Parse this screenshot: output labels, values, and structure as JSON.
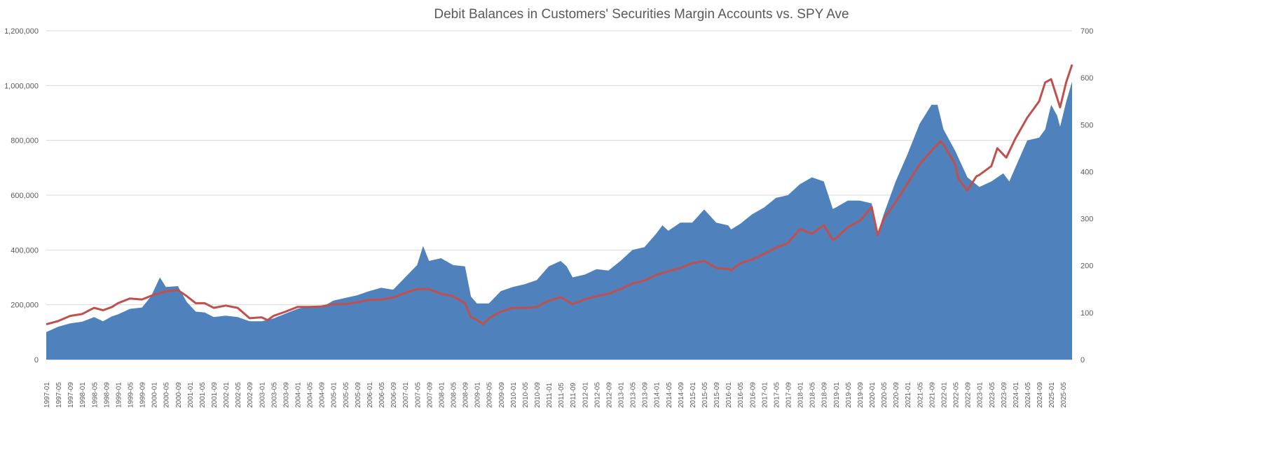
{
  "chart_data": {
    "type": "area",
    "title": "Debit Balances in Customers' Securities Margin Accounts vs. SPY Ave",
    "xlabel": "",
    "ylabel": "",
    "y_left": {
      "ylim": [
        0,
        1200000
      ],
      "ticks": [
        "0",
        "200,000",
        "400,000",
        "600,000",
        "800,000",
        "1,000,000",
        "1,200,000"
      ]
    },
    "y_right": {
      "ylim": [
        0,
        700
      ],
      "ticks": [
        "0",
        "100",
        "200",
        "300",
        "400",
        "500",
        "600",
        "700"
      ]
    },
    "x_tick_labels": [
      "1997-01",
      "1997-05",
      "1997-09",
      "1998-01",
      "1998-05",
      "1998-09",
      "1999-01",
      "1999-05",
      "1999-09",
      "2000-01",
      "2000-05",
      "2000-09",
      "2001-01",
      "2001-05",
      "2001-09",
      "2002-01",
      "2002-05",
      "2002-09",
      "2003-01",
      "2003-05",
      "2003-09",
      "2004-01",
      "2004-05",
      "2004-09",
      "2005-01",
      "2005-05",
      "2005-09",
      "2006-01",
      "2006-05",
      "2006-09",
      "2007-01",
      "2007-05",
      "2007-09",
      "2008-01",
      "2008-05",
      "2008-09",
      "2009-01",
      "2009-05",
      "2009-09",
      "2010-01",
      "2010-05",
      "2010-09",
      "2011-01",
      "2011-05",
      "2011-09",
      "2012-01",
      "2012-05",
      "2012-09",
      "2013-01",
      "2013-05",
      "2013-09",
      "2014-01",
      "2014-05",
      "2014-09",
      "2015-01",
      "2015-05",
      "2015-09",
      "2016-01",
      "2016-05",
      "2016-09",
      "2017-01",
      "2017-05",
      "2017-09",
      "2018-01",
      "2018-05",
      "2018-09",
      "2019-01",
      "2019-05",
      "2019-09",
      "2020-01",
      "2020-05",
      "2020-09",
      "2021-01",
      "2021-05",
      "2021-09",
      "2022-01",
      "2022-05",
      "2022-09",
      "2023-01",
      "2023-05",
      "2023-09",
      "2024-01",
      "2024-05",
      "2024-09",
      "2025-01",
      "2025-05"
    ],
    "x_range": [
      "1997-01",
      "2025-08"
    ],
    "legend": "none",
    "grid": true,
    "series": [
      {
        "axis": "left",
        "kind": "area",
        "color": "#4f81bd",
        "points": [
          [
            "1997-01",
            100000
          ],
          [
            "1997-05",
            120000
          ],
          [
            "1997-09",
            132000
          ],
          [
            "1998-01",
            138000
          ],
          [
            "1998-05",
            155000
          ],
          [
            "1998-08",
            140000
          ],
          [
            "1998-11",
            158000
          ],
          [
            "1999-01",
            165000
          ],
          [
            "1999-05",
            185000
          ],
          [
            "1999-09",
            190000
          ],
          [
            "1999-12",
            230000
          ],
          [
            "2000-03",
            300000
          ],
          [
            "2000-05",
            265000
          ],
          [
            "2000-09",
            268000
          ],
          [
            "2000-12",
            210000
          ],
          [
            "2001-03",
            175000
          ],
          [
            "2001-06",
            172000
          ],
          [
            "2001-09",
            155000
          ],
          [
            "2002-01",
            160000
          ],
          [
            "2002-05",
            155000
          ],
          [
            "2002-09",
            140000
          ],
          [
            "2003-01",
            140000
          ],
          [
            "2003-05",
            150000
          ],
          [
            "2003-09",
            168000
          ],
          [
            "2004-01",
            185000
          ],
          [
            "2004-05",
            195000
          ],
          [
            "2004-09",
            190000
          ],
          [
            "2005-01",
            215000
          ],
          [
            "2005-05",
            225000
          ],
          [
            "2005-09",
            235000
          ],
          [
            "2006-01",
            250000
          ],
          [
            "2006-05",
            262000
          ],
          [
            "2006-09",
            255000
          ],
          [
            "2007-01",
            300000
          ],
          [
            "2007-05",
            345000
          ],
          [
            "2007-07",
            415000
          ],
          [
            "2007-09",
            360000
          ],
          [
            "2008-01",
            370000
          ],
          [
            "2008-05",
            345000
          ],
          [
            "2008-09",
            340000
          ],
          [
            "2008-11",
            230000
          ],
          [
            "2009-01",
            205000
          ],
          [
            "2009-05",
            205000
          ],
          [
            "2009-09",
            250000
          ],
          [
            "2010-01",
            265000
          ],
          [
            "2010-05",
            275000
          ],
          [
            "2010-09",
            290000
          ],
          [
            "2011-01",
            340000
          ],
          [
            "2011-05",
            360000
          ],
          [
            "2011-07",
            340000
          ],
          [
            "2011-09",
            300000
          ],
          [
            "2012-01",
            310000
          ],
          [
            "2012-05",
            330000
          ],
          [
            "2012-09",
            325000
          ],
          [
            "2013-01",
            360000
          ],
          [
            "2013-05",
            400000
          ],
          [
            "2013-09",
            410000
          ],
          [
            "2014-01",
            460000
          ],
          [
            "2014-03",
            490000
          ],
          [
            "2014-05",
            470000
          ],
          [
            "2014-09",
            500000
          ],
          [
            "2015-01",
            500000
          ],
          [
            "2015-05",
            548000
          ],
          [
            "2015-09",
            500000
          ],
          [
            "2016-01",
            490000
          ],
          [
            "2016-02",
            475000
          ],
          [
            "2016-05",
            495000
          ],
          [
            "2016-09",
            530000
          ],
          [
            "2017-01",
            555000
          ],
          [
            "2017-05",
            590000
          ],
          [
            "2017-09",
            600000
          ],
          [
            "2018-01",
            640000
          ],
          [
            "2018-05",
            665000
          ],
          [
            "2018-09",
            650000
          ],
          [
            "2018-12",
            550000
          ],
          [
            "2019-01",
            555000
          ],
          [
            "2019-05",
            580000
          ],
          [
            "2019-09",
            580000
          ],
          [
            "2020-01",
            570000
          ],
          [
            "2020-03",
            460000
          ],
          [
            "2020-05",
            530000
          ],
          [
            "2020-09",
            650000
          ],
          [
            "2021-01",
            750000
          ],
          [
            "2021-05",
            860000
          ],
          [
            "2021-09",
            930000
          ],
          [
            "2021-11",
            930000
          ],
          [
            "2022-01",
            840000
          ],
          [
            "2022-05",
            760000
          ],
          [
            "2022-09",
            665000
          ],
          [
            "2023-01",
            630000
          ],
          [
            "2023-05",
            650000
          ],
          [
            "2023-09",
            680000
          ],
          [
            "2023-11",
            650000
          ],
          [
            "2024-01",
            700000
          ],
          [
            "2024-05",
            800000
          ],
          [
            "2024-09",
            810000
          ],
          [
            "2024-11",
            840000
          ],
          [
            "2025-01",
            930000
          ],
          [
            "2025-03",
            890000
          ],
          [
            "2025-04",
            850000
          ],
          [
            "2025-06",
            940000
          ],
          [
            "2025-08",
            1015000
          ]
        ]
      },
      {
        "axis": "right",
        "kind": "line",
        "color": "#c0504d",
        "points": [
          [
            "1997-01",
            75
          ],
          [
            "1997-05",
            82
          ],
          [
            "1997-09",
            93
          ],
          [
            "1998-01",
            97
          ],
          [
            "1998-05",
            110
          ],
          [
            "1998-08",
            105
          ],
          [
            "1998-11",
            112
          ],
          [
            "1999-01",
            120
          ],
          [
            "1999-05",
            130
          ],
          [
            "1999-09",
            128
          ],
          [
            "2000-01",
            138
          ],
          [
            "2000-05",
            145
          ],
          [
            "2000-09",
            148
          ],
          [
            "2000-12",
            135
          ],
          [
            "2001-03",
            120
          ],
          [
            "2001-06",
            120
          ],
          [
            "2001-09",
            110
          ],
          [
            "2002-01",
            115
          ],
          [
            "2002-05",
            110
          ],
          [
            "2002-09",
            88
          ],
          [
            "2003-01",
            90
          ],
          [
            "2003-03",
            84
          ],
          [
            "2003-05",
            93
          ],
          [
            "2003-09",
            102
          ],
          [
            "2004-01",
            112
          ],
          [
            "2004-05",
            112
          ],
          [
            "2004-09",
            113
          ],
          [
            "2005-01",
            118
          ],
          [
            "2005-05",
            118
          ],
          [
            "2005-09",
            122
          ],
          [
            "2006-01",
            127
          ],
          [
            "2006-05",
            128
          ],
          [
            "2006-09",
            132
          ],
          [
            "2007-01",
            142
          ],
          [
            "2007-05",
            150
          ],
          [
            "2007-09",
            150
          ],
          [
            "2008-01",
            140
          ],
          [
            "2008-05",
            135
          ],
          [
            "2008-09",
            120
          ],
          [
            "2008-11",
            90
          ],
          [
            "2009-01",
            85
          ],
          [
            "2009-03",
            75
          ],
          [
            "2009-05",
            88
          ],
          [
            "2009-09",
            102
          ],
          [
            "2010-01",
            110
          ],
          [
            "2010-05",
            110
          ],
          [
            "2010-09",
            112
          ],
          [
            "2011-01",
            125
          ],
          [
            "2011-05",
            133
          ],
          [
            "2011-09",
            118
          ],
          [
            "2012-01",
            128
          ],
          [
            "2012-05",
            135
          ],
          [
            "2012-09",
            140
          ],
          [
            "2013-01",
            150
          ],
          [
            "2013-05",
            162
          ],
          [
            "2013-09",
            168
          ],
          [
            "2014-01",
            180
          ],
          [
            "2014-05",
            188
          ],
          [
            "2014-09",
            195
          ],
          [
            "2015-01",
            205
          ],
          [
            "2015-05",
            210
          ],
          [
            "2015-09",
            195
          ],
          [
            "2016-01",
            193
          ],
          [
            "2016-02",
            190
          ],
          [
            "2016-05",
            205
          ],
          [
            "2016-09",
            213
          ],
          [
            "2017-01",
            225
          ],
          [
            "2017-05",
            238
          ],
          [
            "2017-09",
            248
          ],
          [
            "2018-01",
            278
          ],
          [
            "2018-05",
            268
          ],
          [
            "2018-09",
            286
          ],
          [
            "2018-12",
            255
          ],
          [
            "2019-01",
            258
          ],
          [
            "2019-05",
            282
          ],
          [
            "2019-09",
            295
          ],
          [
            "2020-01",
            325
          ],
          [
            "2020-03",
            265
          ],
          [
            "2020-05",
            300
          ],
          [
            "2020-09",
            335
          ],
          [
            "2021-01",
            375
          ],
          [
            "2021-05",
            415
          ],
          [
            "2021-09",
            445
          ],
          [
            "2021-12",
            465
          ],
          [
            "2022-01",
            458
          ],
          [
            "2022-05",
            415
          ],
          [
            "2022-06",
            385
          ],
          [
            "2022-09",
            360
          ],
          [
            "2022-12",
            390
          ],
          [
            "2023-01",
            393
          ],
          [
            "2023-05",
            412
          ],
          [
            "2023-07",
            450
          ],
          [
            "2023-10",
            430
          ],
          [
            "2024-01",
            470
          ],
          [
            "2024-05",
            515
          ],
          [
            "2024-09",
            550
          ],
          [
            "2024-11",
            590
          ],
          [
            "2025-01",
            597
          ],
          [
            "2025-04",
            537
          ],
          [
            "2025-06",
            590
          ],
          [
            "2025-08",
            628
          ]
        ]
      }
    ]
  }
}
